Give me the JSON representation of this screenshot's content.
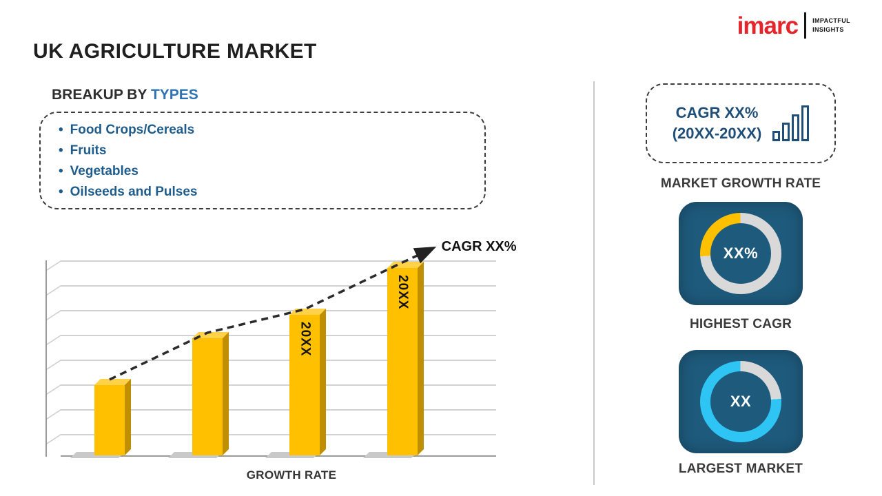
{
  "brand": {
    "logo_text": "imarc",
    "tagline_line1": "IMPACTFUL",
    "tagline_line2": "INSIGHTS"
  },
  "header": {
    "title": "UK AGRICULTURE MARKET"
  },
  "breakup": {
    "heading_prefix": "BREAKUP BY",
    "heading_highlight": "TYPES",
    "items": [
      "Food Crops/Cereals",
      "Fruits",
      "Vegetables",
      "Oilseeds and Pulses"
    ]
  },
  "chart_data": {
    "type": "bar",
    "title": "GROWTH RATE",
    "xlabel": "GROWTH RATE",
    "ylabel": "",
    "categories": [
      "",
      "",
      "20XX",
      "20XX"
    ],
    "values": [
      36,
      60,
      72,
      96
    ],
    "ylim": [
      0,
      100
    ],
    "bar_labels": [
      "",
      "",
      "20XX",
      "20XX"
    ],
    "bar_color": "#ffc000",
    "grid": true,
    "legend": "none",
    "trend": {
      "label": "CAGR XX%",
      "style": "dashed-arrow"
    }
  },
  "right_panel": {
    "growth_box": {
      "line1": "CAGR XX%",
      "line2": "(20XX-20XX)",
      "caption": "MARKET GROWTH RATE"
    },
    "highest_cagr": {
      "value": "XX%",
      "caption": "HIGHEST CAGR",
      "donut": {
        "color": "#ffc000",
        "track": "#d9d9d9",
        "percent": 26,
        "start_deg": 266
      }
    },
    "largest_market": {
      "value": "XX",
      "caption": "LARGEST MARKET",
      "donut": {
        "color": "#2ec5f4",
        "track": "#d9d9d9",
        "percent": 76,
        "start_deg": 86
      }
    }
  },
  "colors": {
    "accent_blue": "#2e74b5",
    "list_blue": "#1f5c8b",
    "tile_blue": "#1e5a7c",
    "bar_gold": "#ffc000",
    "logo_red": "#e4252c"
  }
}
